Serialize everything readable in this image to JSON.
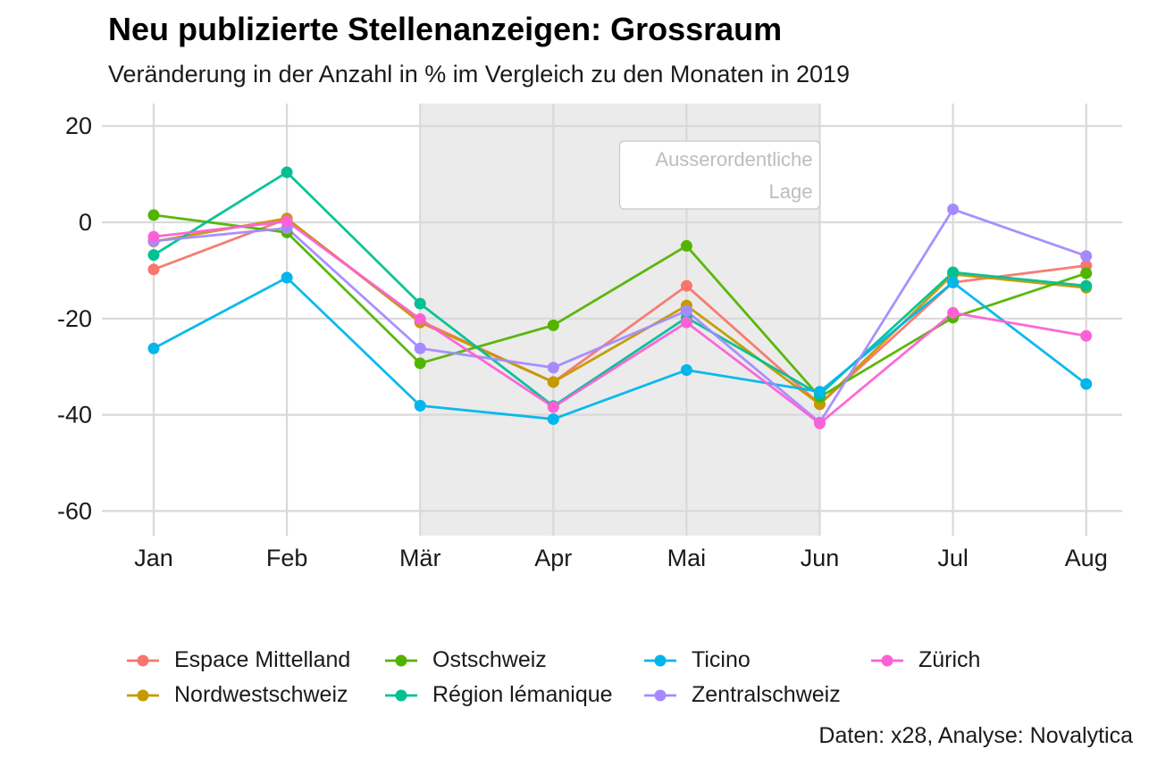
{
  "title": "Neu publizierte Stellenanzeigen: Grossraum",
  "subtitle": "Veränderung in der Anzahl in % im Vergleich zu den Monaten in 2019",
  "caption": "Daten: x28, Analyse: Novalytica",
  "chart_data": {
    "type": "line",
    "categories": [
      "Jan",
      "Feb",
      "Mär",
      "Apr",
      "Mai",
      "Jun",
      "Jul",
      "Aug"
    ],
    "ylim": [
      -65,
      24
    ],
    "yticks": [
      20,
      0,
      -20,
      -40,
      -60
    ],
    "ytick_labels": [
      "20",
      "0",
      "-20",
      "-40",
      "-60"
    ],
    "grid": true,
    "legend_position": "bottom",
    "shaded_region": {
      "from": "Mär",
      "to": "Jun",
      "label_line1": "Ausserordentliche",
      "label_line2": "Lage"
    },
    "series": [
      {
        "name": "Espace Mittelland",
        "color": "#F8766D",
        "values": [
          -9.8,
          0.7,
          -20.5,
          -33.2,
          -13.2,
          -37.8,
          -12.5,
          -9.0
        ]
      },
      {
        "name": "Nordwestschweiz",
        "color": "#C49A00",
        "values": [
          -4.0,
          0.8,
          -20.8,
          -33.2,
          -17.3,
          -37.8,
          -10.8,
          -13.6
        ]
      },
      {
        "name": "Ostschweiz",
        "color": "#53B400",
        "values": [
          1.5,
          -2.1,
          -29.3,
          -21.4,
          -4.9,
          -36.3,
          -19.8,
          -10.6
        ]
      },
      {
        "name": "Région lémanique",
        "color": "#00C094",
        "values": [
          -6.8,
          10.4,
          -16.9,
          -38.2,
          -19.8,
          -35.8,
          -10.4,
          -13.2
        ]
      },
      {
        "name": "Ticino",
        "color": "#00B6EB",
        "values": [
          -26.2,
          -11.5,
          -38.1,
          -40.9,
          -30.7,
          -35.2,
          -12.5,
          -33.6
        ]
      },
      {
        "name": "Zentralschweiz",
        "color": "#A58AFF",
        "values": [
          -3.9,
          -1.2,
          -26.2,
          -30.2,
          -18.4,
          -41.6,
          2.7,
          -7.0
        ]
      },
      {
        "name": "Zürich",
        "color": "#FB61D7",
        "values": [
          -3.0,
          0.2,
          -20.1,
          -38.4,
          -20.8,
          -41.8,
          -18.8,
          -23.6
        ]
      }
    ]
  }
}
